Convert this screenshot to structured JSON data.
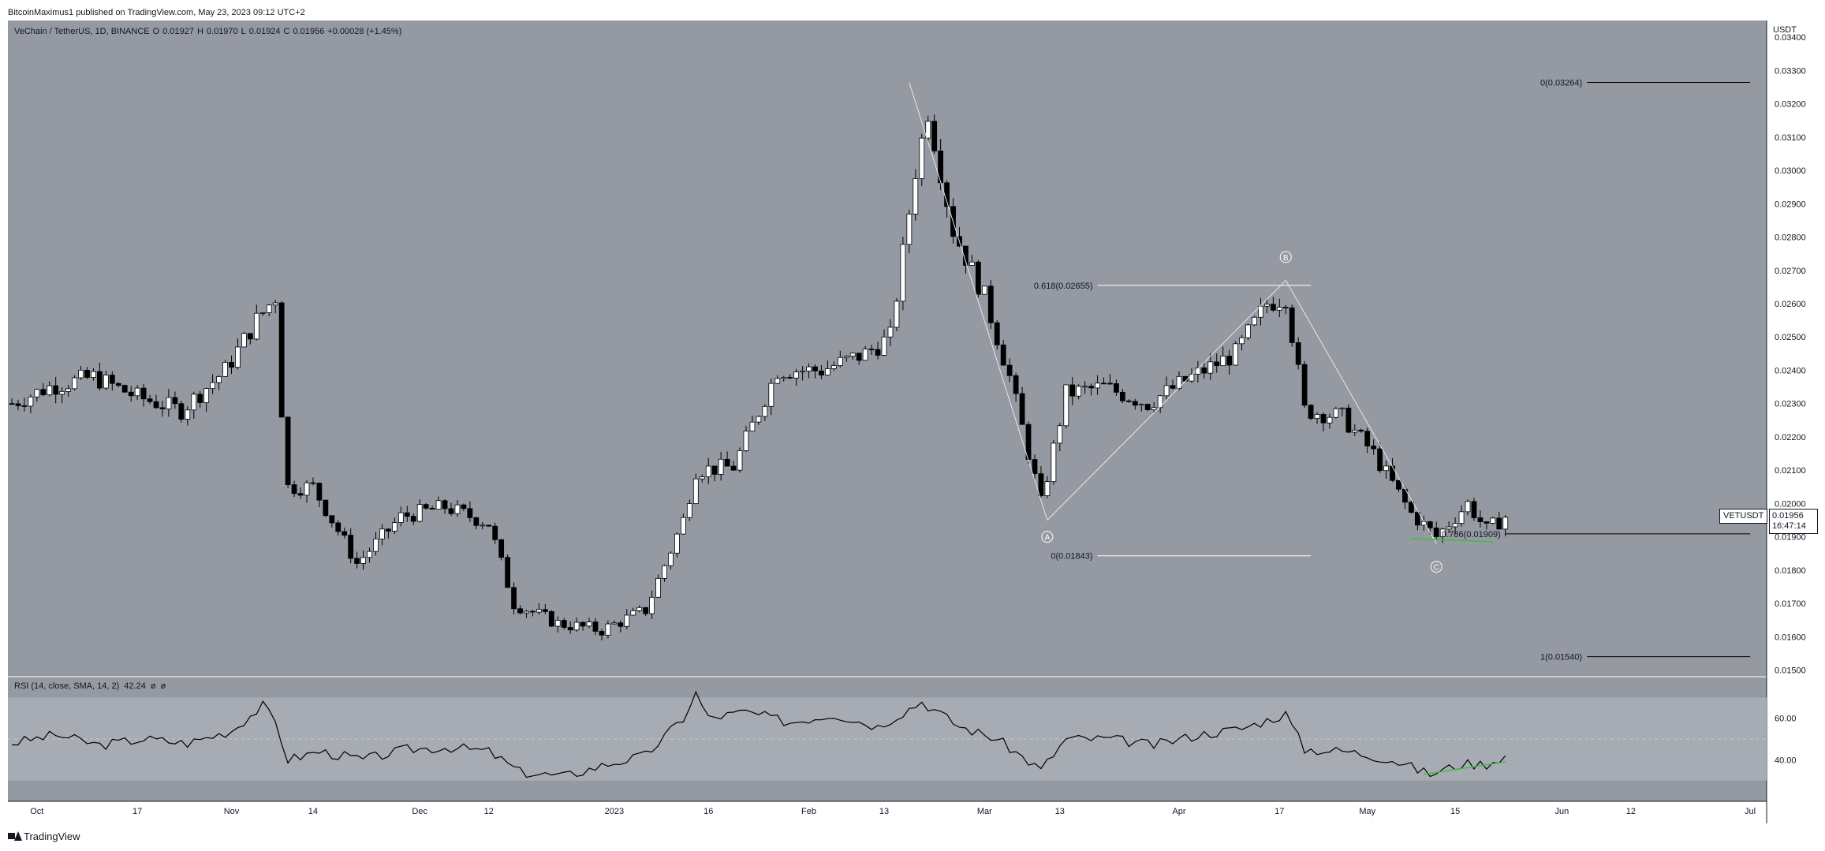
{
  "header": {
    "publisher_text": "BitcoinMaximus1 published on TradingView.com, May 23, 2023 09:12 UTC+2"
  },
  "legend": {
    "symbol": "VeChain / TetherUS, 1D, BINANCE",
    "open_label": "O",
    "open": "0.01927",
    "high_label": "H",
    "high": "0.01970",
    "low_label": "L",
    "low": "0.01924",
    "close_label": "C",
    "close": "0.01956",
    "change": "+0.00028 (+1.45%)"
  },
  "rsi_legend": {
    "label": "RSI (14, close, SMA, 14, 2)",
    "value": "42.24",
    "extra1": "ø",
    "extra2": "ø"
  },
  "price_axis": {
    "unit": "USDT",
    "ticks": [
      "0.03400",
      "0.03300",
      "0.03200",
      "0.03100",
      "0.03000",
      "0.02900",
      "0.02800",
      "0.02700",
      "0.02600",
      "0.02500",
      "0.02400",
      "0.02300",
      "0.02200",
      "0.02100",
      "0.02000",
      "0.01900",
      "0.01800",
      "0.01700",
      "0.01600",
      "0.01500"
    ]
  },
  "rsi_axis": {
    "ticks": [
      "60.00",
      "40.00"
    ]
  },
  "time_axis": {
    "ticks": [
      "Oct",
      "17",
      "Nov",
      "14",
      "Dec",
      "12",
      "2023",
      "16",
      "Feb",
      "13",
      "Mar",
      "13",
      "Apr",
      "17",
      "May",
      "15",
      "Jun",
      "12",
      "Jul"
    ]
  },
  "current_price": {
    "symbol": "VETUSDT",
    "price": "0.01956",
    "countdown": "16:47:14"
  },
  "fib_levels": [
    {
      "label": "0(0.03264)",
      "value": 0.03264
    },
    {
      "label": "0.618(0.02655)",
      "value": 0.02655
    },
    {
      "label": "0.786(0.01909)",
      "value": 0.01909
    },
    {
      "label": "0(0.01843)",
      "value": 0.01843
    },
    {
      "label": "1(0.01540)",
      "value": 0.0154
    }
  ],
  "wave_labels": [
    "A",
    "B",
    "C"
  ],
  "footer": {
    "brand": "TradingView"
  },
  "colors": {
    "chart_bg": "#9599a2",
    "rsi_band": "#a7abb3",
    "up_candle": "#ffffff",
    "down_candle": "#000000",
    "fib_line": "#000000",
    "fib_line_light": "#ffffff",
    "divergence": "#3fbf3f",
    "axis_text": "#131722"
  },
  "chart_data": [
    {
      "type": "candlestick",
      "title": "VeChain / TetherUS, 1D, BINANCE",
      "ylabel": "USDT",
      "ylim": [
        0.0148,
        0.0345
      ],
      "x_ticks": [
        "Oct",
        "17",
        "Nov",
        "14",
        "Dec",
        "12",
        "2023",
        "16",
        "Feb",
        "13",
        "Mar",
        "13",
        "Apr",
        "17",
        "May",
        "15",
        "Jun",
        "12",
        "Jul"
      ],
      "x_range": [
        "2022-09-27",
        "2023-07-03"
      ],
      "closes_anchor": [
        [
          "2022-09-27",
          0.023
        ],
        [
          "2022-10-03",
          0.0235
        ],
        [
          "2022-10-10",
          0.0238
        ],
        [
          "2022-10-17",
          0.0232
        ],
        [
          "2022-10-24",
          0.0228
        ],
        [
          "2022-10-31",
          0.024
        ],
        [
          "2022-11-05",
          0.0255
        ],
        [
          "2022-11-08",
          0.0262
        ],
        [
          "2022-11-09",
          0.0228
        ],
        [
          "2022-11-10",
          0.0205
        ],
        [
          "2022-11-14",
          0.0205
        ],
        [
          "2022-11-21",
          0.0182
        ],
        [
          "2022-11-28",
          0.0196
        ],
        [
          "2022-12-05",
          0.0199
        ],
        [
          "2022-12-12",
          0.0194
        ],
        [
          "2022-12-16",
          0.017
        ],
        [
          "2022-12-23",
          0.0164
        ],
        [
          "2022-12-30",
          0.0162
        ],
        [
          "2023-01-06",
          0.0168
        ],
        [
          "2023-01-12",
          0.0195
        ],
        [
          "2023-01-14",
          0.021
        ],
        [
          "2023-01-20",
          0.0211
        ],
        [
          "2023-01-27",
          0.024
        ],
        [
          "2023-02-03",
          0.024
        ],
        [
          "2023-02-10",
          0.0245
        ],
        [
          "2023-02-14",
          0.025
        ],
        [
          "2023-02-18",
          0.03
        ],
        [
          "2023-02-20",
          0.0318
        ],
        [
          "2023-02-24",
          0.0282
        ],
        [
          "2023-03-01",
          0.0262
        ],
        [
          "2023-03-05",
          0.0238
        ],
        [
          "2023-03-10",
          0.02
        ],
        [
          "2023-03-14",
          0.0233
        ],
        [
          "2023-03-20",
          0.0235
        ],
        [
          "2023-03-27",
          0.023
        ],
        [
          "2023-04-03",
          0.0238
        ],
        [
          "2023-04-10",
          0.0245
        ],
        [
          "2023-04-15",
          0.026
        ],
        [
          "2023-04-18",
          0.0262
        ],
        [
          "2023-04-21",
          0.0228
        ],
        [
          "2023-04-27",
          0.0226
        ],
        [
          "2023-05-02",
          0.0215
        ],
        [
          "2023-05-08",
          0.0197
        ],
        [
          "2023-05-12",
          0.019
        ],
        [
          "2023-05-17",
          0.02
        ],
        [
          "2023-05-20",
          0.0192
        ],
        [
          "2023-05-23",
          0.0196
        ]
      ],
      "annotations": [
        "A",
        "B",
        "C",
        "0(0.03264)",
        "0.618(0.02655)",
        "0.786(0.01909)",
        "0(0.01843)",
        "1(0.01540)"
      ]
    },
    {
      "type": "line",
      "title": "RSI (14, close, SMA, 14, 2)",
      "ylim": [
        20,
        80
      ],
      "y_ticks": [
        60,
        40
      ],
      "band": [
        30,
        70
      ],
      "midline": 50,
      "series": [
        {
          "name": "RSI",
          "points": [
            [
              "2022-09-27",
              48
            ],
            [
              "2022-10-04",
              52
            ],
            [
              "2022-10-11",
              47
            ],
            [
              "2022-10-18",
              50
            ],
            [
              "2022-10-25",
              48
            ],
            [
              "2022-11-01",
              54
            ],
            [
              "2022-11-06",
              66
            ],
            [
              "2022-11-08",
              58
            ],
            [
              "2022-11-10",
              40
            ],
            [
              "2022-11-15",
              44
            ],
            [
              "2022-11-22",
              40
            ],
            [
              "2022-11-29",
              45
            ],
            [
              "2022-12-06",
              46
            ],
            [
              "2022-12-12",
              44
            ],
            [
              "2022-12-17",
              34
            ],
            [
              "2022-12-24",
              32
            ],
            [
              "2022-12-31",
              38
            ],
            [
              "2023-01-06",
              42
            ],
            [
              "2023-01-12",
              60
            ],
            [
              "2023-01-14",
              72
            ],
            [
              "2023-01-16",
              60
            ],
            [
              "2023-01-22",
              63
            ],
            [
              "2023-01-29",
              58
            ],
            [
              "2023-02-05",
              62
            ],
            [
              "2023-02-12",
              56
            ],
            [
              "2023-02-19",
              68
            ],
            [
              "2023-02-25",
              56
            ],
            [
              "2023-03-03",
              50
            ],
            [
              "2023-03-10",
              35
            ],
            [
              "2023-03-14",
              50
            ],
            [
              "2023-03-21",
              50
            ],
            [
              "2023-03-28",
              47
            ],
            [
              "2023-04-04",
              52
            ],
            [
              "2023-04-11",
              55
            ],
            [
              "2023-04-18",
              62
            ],
            [
              "2023-04-21",
              45
            ],
            [
              "2023-04-28",
              44
            ],
            [
              "2023-05-05",
              40
            ],
            [
              "2023-05-11",
              33
            ],
            [
              "2023-05-16",
              38
            ],
            [
              "2023-05-20",
              38
            ],
            [
              "2023-05-23",
              42
            ]
          ]
        }
      ]
    }
  ]
}
